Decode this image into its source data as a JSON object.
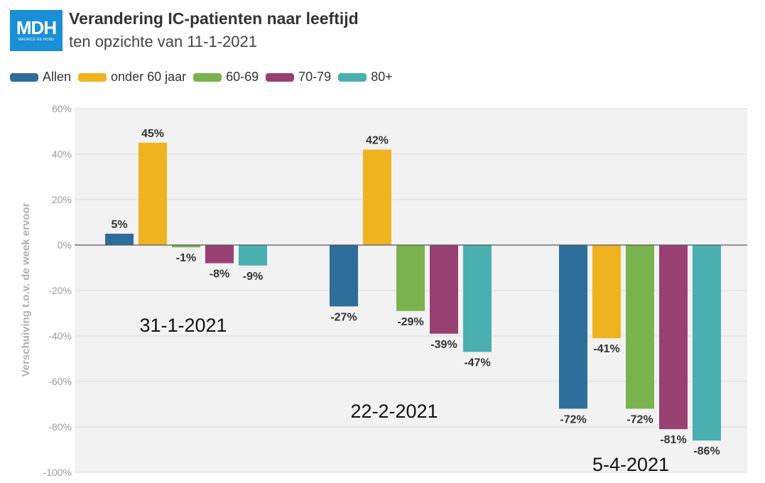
{
  "header": {
    "logo_text": "MDH",
    "logo_subtext": "MAURICE DE HOND",
    "title": "Verandering IC-patienten naar leeftijd",
    "subtitle": "ten opzichte van 11-1-2021"
  },
  "colors": {
    "Allen": "#2e6e9a",
    "onder 60 jaar": "#efb320",
    "60-69": "#7ab24e",
    "70-79": "#994073",
    "80+": "#4aafaf",
    "logo": "#1a8fd6"
  },
  "chart_data": {
    "type": "bar",
    "title": "Verandering IC-patienten naar leeftijd",
    "subtitle": "ten opzichte van 11-1-2021",
    "ylabel": "Verschuiving t.o.v. de week ervoor",
    "xlabel": "",
    "ylim": [
      -100,
      60
    ],
    "yticks": [
      60,
      40,
      20,
      0,
      -20,
      -40,
      -60,
      -80,
      -100
    ],
    "ytick_labels": [
      "60%",
      "40%",
      "20%",
      "0%",
      "-20%",
      "-40%",
      "-60%",
      "-80%",
      "-100%"
    ],
    "grid": true,
    "legend_position": "top-left",
    "categories": [
      "31-1-2021",
      "22-2-2021",
      "5-4-2021"
    ],
    "series": [
      {
        "name": "Allen",
        "values": [
          5,
          -27,
          -72
        ],
        "labels": [
          "5%",
          "-27%",
          "-72%"
        ]
      },
      {
        "name": "onder 60 jaar",
        "values": [
          45,
          42,
          -41
        ],
        "labels": [
          "45%",
          "42%",
          "-41%"
        ]
      },
      {
        "name": "60-69",
        "values": [
          -1,
          -29,
          -72
        ],
        "labels": [
          "-1%",
          "-29%",
          "-72%"
        ]
      },
      {
        "name": "70-79",
        "values": [
          -8,
          -39,
          -81
        ],
        "labels": [
          "-8%",
          "-39%",
          "-81%"
        ]
      },
      {
        "name": "80+",
        "values": [
          -9,
          -47,
          -86
        ],
        "labels": [
          "-9%",
          "-47%",
          "-86%"
        ]
      }
    ]
  }
}
